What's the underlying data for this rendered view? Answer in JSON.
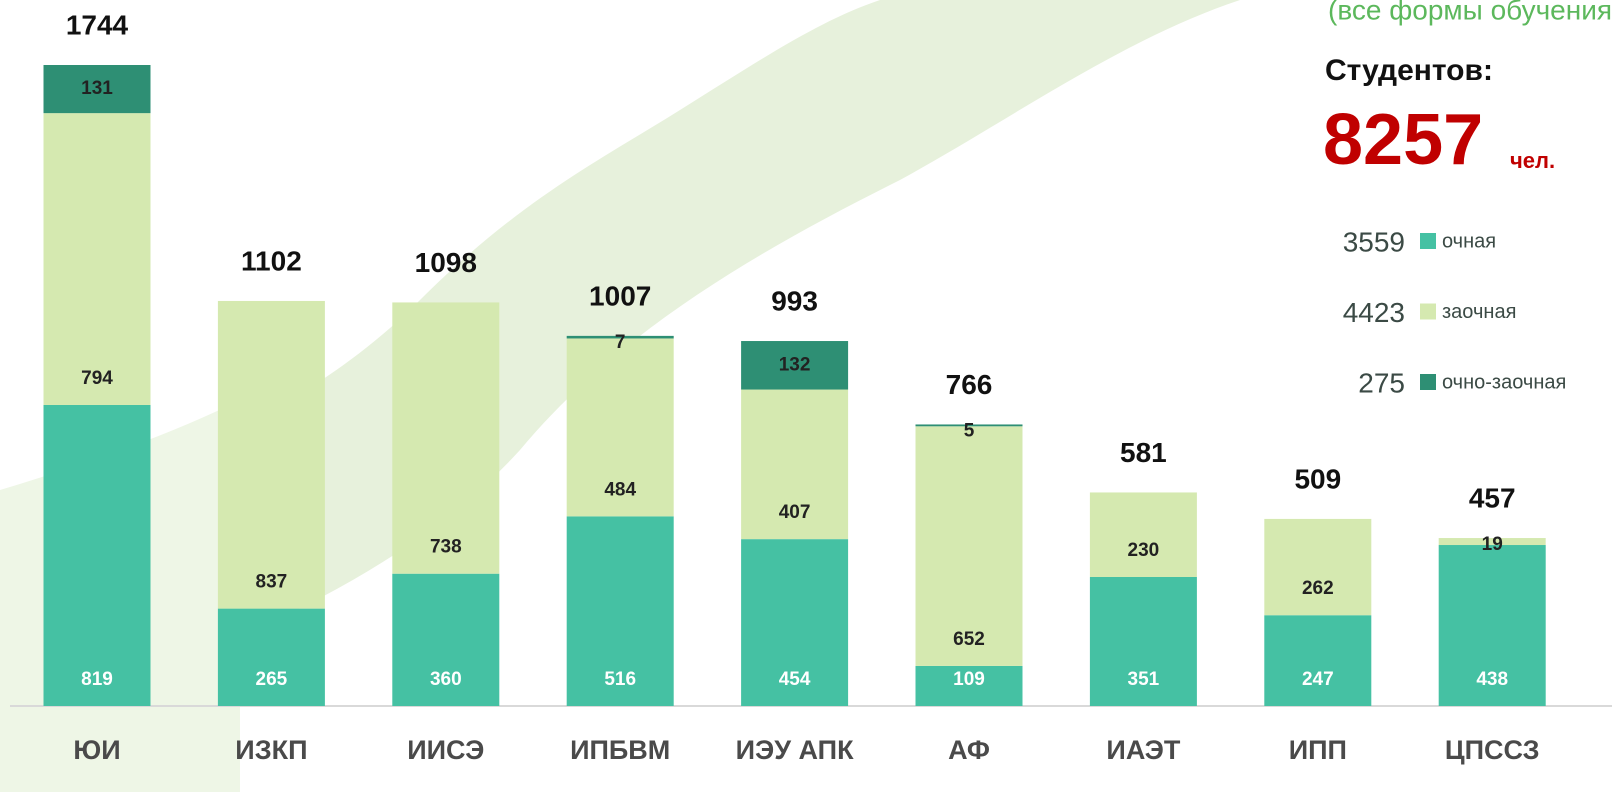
{
  "chart_data": {
    "type": "stacked_bar",
    "subtitle": "(все формы обучения",
    "students_label": "Студентов:",
    "students_total": 8257,
    "students_unit": "чел.",
    "categories": [
      "ЮИ",
      "ИЗКП",
      "ИИСЭ",
      "ИПБВМ",
      "ИЭУ АПК",
      "АФ",
      "ИАЭТ",
      "ИПП",
      "ЦПССЗ"
    ],
    "totals": [
      1744,
      1102,
      1098,
      1007,
      993,
      766,
      581,
      509,
      457
    ],
    "series": [
      {
        "name": "очная",
        "color": "#45c1a3",
        "total": 3559,
        "values": [
          819,
          265,
          360,
          516,
          454,
          109,
          351,
          247,
          438
        ]
      },
      {
        "name": "заочная",
        "color": "#d5e9b0",
        "total": 4423,
        "values": [
          794,
          837,
          738,
          484,
          407,
          652,
          230,
          262,
          19
        ]
      },
      {
        "name": "очно-заочная",
        "color": "#2e8f74",
        "total": 275,
        "values": [
          131,
          null,
          null,
          7,
          132,
          5,
          null,
          null,
          null
        ]
      }
    ]
  }
}
